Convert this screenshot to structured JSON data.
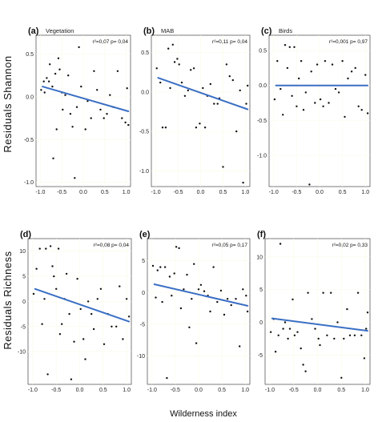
{
  "figure": {
    "y_label_top": "Residuals Shannon",
    "y_label_bottom": "Residuals Richness",
    "x_label": "Wilderness index"
  },
  "colors": {
    "fit_line": "#3b6fc4",
    "points": "#111111",
    "grid": "#fbfbe8"
  },
  "chart_data": [
    {
      "type": "scatter",
      "letter": "(a)",
      "title": "Vegetation",
      "stat": "r²=0,07  p= 0,04",
      "xlim": [
        -1.1,
        1.1
      ],
      "ylim": [
        -1.05,
        0.72
      ],
      "xticks": [
        {
          "v": -1.0,
          "t": "-1.0"
        },
        {
          "v": -0.5,
          "t": "-0.5"
        },
        {
          "v": 0.0,
          "t": "0.0"
        },
        {
          "v": 0.5,
          "t": "0.5"
        },
        {
          "v": 1.0,
          "t": "1.0"
        }
      ],
      "yticks": [
        {
          "v": 0.5,
          "t": "0.5"
        },
        {
          "v": 0.0,
          "t": "0.0"
        },
        {
          "v": -0.5,
          "t": "-0.5"
        },
        {
          "v": -1.0,
          "t": "-1.0"
        }
      ],
      "fit": {
        "x": [
          -0.95,
          1.05
        ],
        "y": [
          0.12,
          -0.17
        ]
      },
      "points": [
        [
          -0.98,
          0.08
        ],
        [
          -0.92,
          0.18
        ],
        [
          -0.9,
          0.05
        ],
        [
          -0.85,
          0.22
        ],
        [
          -0.8,
          0.18
        ],
        [
          -0.78,
          0.38
        ],
        [
          -0.72,
          0.12
        ],
        [
          -0.7,
          -0.72
        ],
        [
          -0.65,
          0.27
        ],
        [
          -0.62,
          -0.38
        ],
        [
          -0.58,
          0.45
        ],
        [
          -0.55,
          0.32
        ],
        [
          -0.5,
          0.05
        ],
        [
          -0.48,
          -0.15
        ],
        [
          -0.42,
          0.02
        ],
        [
          -0.35,
          0.25
        ],
        [
          -0.3,
          -0.2
        ],
        [
          -0.25,
          -0.35
        ],
        [
          -0.2,
          -0.95
        ],
        [
          -0.15,
          -0.12
        ],
        [
          -0.1,
          0.58
        ],
        [
          -0.05,
          0.12
        ],
        [
          0.05,
          -0.38
        ],
        [
          0.1,
          -0.05
        ],
        [
          0.18,
          -0.25
        ],
        [
          0.25,
          0.3
        ],
        [
          0.32,
          0.08
        ],
        [
          0.4,
          -0.15
        ],
        [
          0.48,
          -0.25
        ],
        [
          0.55,
          -0.2
        ],
        [
          0.62,
          0.02
        ],
        [
          0.7,
          -0.12
        ],
        [
          0.8,
          0.3
        ],
        [
          0.9,
          -0.25
        ],
        [
          0.98,
          -0.3
        ],
        [
          1.02,
          0.1
        ],
        [
          1.05,
          -0.33
        ]
      ]
    },
    {
      "type": "scatter",
      "letter": "(b)",
      "title": "MAB",
      "stat": "r²=0,11  p= 0,04",
      "xlim": [
        -1.1,
        1.1
      ],
      "ylim": [
        -1.2,
        0.72
      ],
      "xticks": [
        {
          "v": -1.0,
          "t": "-1.0"
        },
        {
          "v": -0.5,
          "t": "-0.5"
        },
        {
          "v": 0.0,
          "t": "0.0"
        },
        {
          "v": 0.5,
          "t": "0.5"
        },
        {
          "v": 1.0,
          "t": "1.0"
        }
      ],
      "yticks": [
        {
          "v": 0.5,
          "t": "0.5"
        },
        {
          "v": 0.0,
          "t": "0.0"
        },
        {
          "v": -0.5,
          "t": "-0.5"
        },
        {
          "v": -1.0,
          "t": "-1.0"
        }
      ],
      "fit": {
        "x": [
          -0.95,
          1.05
        ],
        "y": [
          0.18,
          -0.22
        ]
      },
      "points": [
        [
          -0.98,
          0.3
        ],
        [
          -0.9,
          0.12
        ],
        [
          -0.85,
          -0.45
        ],
        [
          -0.78,
          -0.45
        ],
        [
          -0.72,
          0.55
        ],
        [
          -0.68,
          0.05
        ],
        [
          -0.62,
          0.6
        ],
        [
          -0.58,
          0.38
        ],
        [
          -0.52,
          0.42
        ],
        [
          -0.48,
          0.35
        ],
        [
          -0.42,
          0.12
        ],
        [
          -0.35,
          -0.05
        ],
        [
          -0.28,
          0.02
        ],
        [
          -0.22,
          0.28
        ],
        [
          -0.15,
          0.3
        ],
        [
          -0.1,
          -0.45
        ],
        [
          -0.02,
          -0.4
        ],
        [
          0.05,
          0.05
        ],
        [
          0.1,
          -0.45
        ],
        [
          0.15,
          -0.05
        ],
        [
          0.22,
          0.1
        ],
        [
          0.3,
          -0.15
        ],
        [
          0.38,
          -0.15
        ],
        [
          0.42,
          -0.08
        ],
        [
          0.5,
          -0.95
        ],
        [
          0.58,
          0.35
        ],
        [
          0.65,
          0.2
        ],
        [
          0.72,
          0.15
        ],
        [
          0.8,
          -0.5
        ],
        [
          0.88,
          0.02
        ],
        [
          0.95,
          -1.15
        ],
        [
          1.02,
          -0.15
        ],
        [
          1.05,
          0.08
        ]
      ]
    },
    {
      "type": "scatter",
      "letter": "(c)",
      "title": "Birds",
      "stat": "r²=0,001  p= 0,97",
      "xlim": [
        -1.1,
        1.1
      ],
      "ylim": [
        -1.45,
        0.72
      ],
      "xticks": [
        {
          "v": -1.0,
          "t": "-1.0"
        },
        {
          "v": -0.5,
          "t": "-0.5"
        },
        {
          "v": 0.0,
          "t": "0.0"
        },
        {
          "v": 0.5,
          "t": "0.5"
        },
        {
          "v": 1.0,
          "t": "1.0"
        }
      ],
      "yticks": [
        {
          "v": 0.5,
          "t": "0.5"
        },
        {
          "v": 0.0,
          "t": "0.0"
        },
        {
          "v": -0.5,
          "t": "-0.5"
        },
        {
          "v": -1.0,
          "t": "-1.0"
        }
      ],
      "fit": {
        "x": [
          -0.95,
          1.05
        ],
        "y": [
          0.0,
          0.0
        ]
      },
      "points": [
        [
          -0.98,
          -0.2
        ],
        [
          -0.92,
          0.35
        ],
        [
          -0.85,
          -0.05
        ],
        [
          -0.8,
          -0.42
        ],
        [
          -0.75,
          0.58
        ],
        [
          -0.7,
          0.25
        ],
        [
          -0.65,
          0.55
        ],
        [
          -0.6,
          -0.15
        ],
        [
          -0.55,
          0.55
        ],
        [
          -0.5,
          -0.3
        ],
        [
          -0.45,
          0.1
        ],
        [
          -0.4,
          0.35
        ],
        [
          -0.35,
          -0.35
        ],
        [
          -0.3,
          -0.1
        ],
        [
          -0.22,
          -1.42
        ],
        [
          -0.18,
          0.2
        ],
        [
          -0.1,
          -0.25
        ],
        [
          -0.05,
          0.3
        ],
        [
          0.02,
          -0.2
        ],
        [
          0.08,
          -0.3
        ],
        [
          0.12,
          0.35
        ],
        [
          0.2,
          -0.25
        ],
        [
          0.28,
          0.3
        ],
        [
          0.35,
          -0.05
        ],
        [
          0.42,
          -0.1
        ],
        [
          0.5,
          0.35
        ],
        [
          0.55,
          -0.45
        ],
        [
          0.62,
          0.1
        ],
        [
          0.7,
          0.2
        ],
        [
          0.78,
          0.25
        ],
        [
          0.85,
          -0.3
        ],
        [
          0.92,
          -0.35
        ],
        [
          1.0,
          0.15
        ],
        [
          1.05,
          -0.4
        ]
      ]
    },
    {
      "type": "scatter",
      "letter": "(d)",
      "title": "",
      "stat": "r²=0,08  p= 0,04",
      "xlim": [
        -1.1,
        1.1
      ],
      "ylim": [
        -16.5,
        12.5
      ],
      "xticks": [
        {
          "v": -1.0,
          "t": "-1.0"
        },
        {
          "v": -0.5,
          "t": "-0.5"
        },
        {
          "v": 0.0,
          "t": "0.0"
        },
        {
          "v": 0.5,
          "t": "0.5"
        },
        {
          "v": 1.0,
          "t": "1.0"
        }
      ],
      "yticks": [
        {
          "v": 10,
          "t": "10"
        },
        {
          "v": 5,
          "t": "5"
        },
        {
          "v": 0,
          "t": "0"
        },
        {
          "v": -5,
          "t": "-5"
        },
        {
          "v": -10,
          "t": "-10"
        }
      ],
      "fit": {
        "x": [
          -0.95,
          1.05
        ],
        "y": [
          2.5,
          -4.0
        ]
      },
      "points": [
        [
          -0.98,
          1.5
        ],
        [
          -0.92,
          6.5
        ],
        [
          -0.85,
          10.5
        ],
        [
          -0.8,
          -4.5
        ],
        [
          -0.75,
          0.5
        ],
        [
          -0.72,
          10.5
        ],
        [
          -0.68,
          -14.5
        ],
        [
          -0.62,
          11.0
        ],
        [
          -0.58,
          7.0
        ],
        [
          -0.55,
          5.0
        ],
        [
          -0.5,
          2.5
        ],
        [
          -0.45,
          10.5
        ],
        [
          -0.42,
          -6.5
        ],
        [
          -0.38,
          -4.5
        ],
        [
          -0.32,
          0.5
        ],
        [
          -0.28,
          5.5
        ],
        [
          -0.22,
          -2.5
        ],
        [
          -0.18,
          -15.5
        ],
        [
          -0.12,
          -8.0
        ],
        [
          -0.05,
          4.5
        ],
        [
          0.02,
          -1.5
        ],
        [
          0.08,
          -7.5
        ],
        [
          0.12,
          -11.5
        ],
        [
          0.18,
          0.0
        ],
        [
          0.25,
          -2.5
        ],
        [
          0.3,
          -5.5
        ],
        [
          0.38,
          0.5
        ],
        [
          0.45,
          2.5
        ],
        [
          0.52,
          -8.5
        ],
        [
          0.6,
          -2.5
        ],
        [
          0.68,
          -5.0
        ],
        [
          0.78,
          -5.0
        ],
        [
          0.85,
          3.0
        ],
        [
          0.92,
          -7.5
        ],
        [
          1.0,
          0.5
        ],
        [
          1.05,
          -3.0
        ]
      ]
    },
    {
      "type": "scatter",
      "letter": "(e)",
      "title": "",
      "stat": "r²=0,05  p= 0,17",
      "xlim": [
        -1.1,
        1.1
      ],
      "ylim": [
        -14.5,
        8.5
      ],
      "xticks": [
        {
          "v": -1.0,
          "t": "-1.0"
        },
        {
          "v": -0.5,
          "t": "-0.5"
        },
        {
          "v": 0.0,
          "t": "0.0"
        },
        {
          "v": 0.5,
          "t": "0.5"
        },
        {
          "v": 1.0,
          "t": "1.0"
        }
      ],
      "yticks": [
        {
          "v": 5,
          "t": "5"
        },
        {
          "v": 0,
          "t": "0"
        },
        {
          "v": -5,
          "t": "-5"
        },
        {
          "v": -10,
          "t": "-10"
        }
      ],
      "fit": {
        "x": [
          -0.95,
          1.05
        ],
        "y": [
          1.3,
          -2.1
        ]
      },
      "points": [
        [
          -0.98,
          4.2
        ],
        [
          -0.92,
          -0.8
        ],
        [
          -0.88,
          3.5
        ],
        [
          -0.82,
          4.0
        ],
        [
          -0.78,
          -1.5
        ],
        [
          -0.72,
          4.0
        ],
        [
          -0.68,
          -13.5
        ],
        [
          -0.62,
          2.5
        ],
        [
          -0.58,
          -0.5
        ],
        [
          -0.52,
          3.0
        ],
        [
          -0.48,
          7.2
        ],
        [
          -0.42,
          7.0
        ],
        [
          -0.38,
          -2.5
        ],
        [
          -0.32,
          0.5
        ],
        [
          -0.25,
          2.8
        ],
        [
          -0.2,
          -5.5
        ],
        [
          -0.15,
          -1.0
        ],
        [
          -0.1,
          4.5
        ],
        [
          -0.05,
          -8.0
        ],
        [
          0.0,
          0.5
        ],
        [
          0.05,
          1.2
        ],
        [
          0.12,
          0.2
        ],
        [
          0.2,
          -0.5
        ],
        [
          0.25,
          -3.0
        ],
        [
          0.32,
          4.0
        ],
        [
          0.4,
          -1.5
        ],
        [
          0.48,
          0.3
        ],
        [
          0.55,
          -3.5
        ],
        [
          0.62,
          -1.0
        ],
        [
          0.7,
          -2.0
        ],
        [
          0.8,
          -1.0
        ],
        [
          0.88,
          -8.5
        ],
        [
          0.95,
          0.5
        ],
        [
          1.02,
          -0.5
        ],
        [
          1.05,
          -3.0
        ]
      ]
    },
    {
      "type": "scatter",
      "letter": "(f)",
      "title": "",
      "stat": "r²=0,02  p= 0,33",
      "xlim": [
        -1.1,
        1.1
      ],
      "ylim": [
        -9.5,
        12.8
      ],
      "xticks": [
        {
          "v": -1.0,
          "t": "-1.0"
        },
        {
          "v": -0.5,
          "t": "-0.5"
        },
        {
          "v": 0.0,
          "t": "0.0"
        },
        {
          "v": 0.5,
          "t": "0.5"
        },
        {
          "v": 1.0,
          "t": "1.0"
        }
      ],
      "yticks": [
        {
          "v": 10,
          "t": "10"
        },
        {
          "v": 5,
          "t": "5"
        },
        {
          "v": 0,
          "t": "0"
        },
        {
          "v": -5,
          "t": "-5"
        }
      ],
      "fit": {
        "x": [
          -0.95,
          1.05
        ],
        "y": [
          0.6,
          -1.3
        ]
      },
      "points": [
        [
          -0.98,
          -1.5
        ],
        [
          -0.92,
          0.5
        ],
        [
          -0.88,
          -4.5
        ],
        [
          -0.82,
          -2.0
        ],
        [
          -0.78,
          12.0
        ],
        [
          -0.72,
          -1.0
        ],
        [
          -0.68,
          0.0
        ],
        [
          -0.62,
          -2.5
        ],
        [
          -0.58,
          -1.0
        ],
        [
          -0.52,
          3.5
        ],
        [
          -0.48,
          -2.0
        ],
        [
          -0.42,
          -1.5
        ],
        [
          -0.35,
          -4.0
        ],
        [
          -0.3,
          -6.5
        ],
        [
          -0.25,
          -7.5
        ],
        [
          -0.2,
          4.5
        ],
        [
          -0.12,
          0.5
        ],
        [
          -0.05,
          -1.0
        ],
        [
          0.02,
          -2.5
        ],
        [
          0.05,
          -3.5
        ],
        [
          0.12,
          4.5
        ],
        [
          0.2,
          -2.0
        ],
        [
          0.28,
          4.5
        ],
        [
          0.35,
          -2.5
        ],
        [
          0.42,
          0.0
        ],
        [
          0.5,
          -8.5
        ],
        [
          0.55,
          -2.5
        ],
        [
          0.62,
          2.0
        ],
        [
          0.68,
          -2.0
        ],
        [
          0.78,
          -2.0
        ],
        [
          0.85,
          4.5
        ],
        [
          0.92,
          -2.0
        ],
        [
          0.98,
          -5.5
        ],
        [
          1.02,
          -1.0
        ],
        [
          1.05,
          1.5
        ]
      ]
    }
  ]
}
